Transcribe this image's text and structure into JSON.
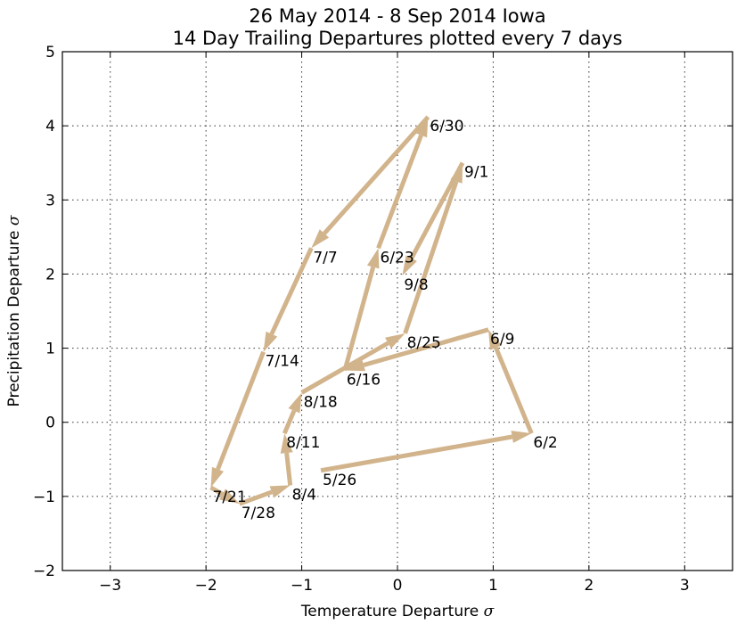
{
  "chart_data": {
    "type": "line",
    "title": "26 May 2014 - 8 Sep 2014 Iowa",
    "subtitle": "14 Day Trailing Departures plotted every 7 days",
    "xlabel": "Temperature Departure",
    "ylabel": "Precipitation Departure",
    "sigma": "σ",
    "xlim": [
      -3.5,
      3.5
    ],
    "ylim": [
      -2,
      5
    ],
    "xticks": [
      -3,
      -2,
      -1,
      0,
      1,
      2,
      3
    ],
    "yticks": [
      -2,
      -1,
      0,
      1,
      2,
      3,
      4,
      5
    ],
    "grid": true,
    "arrow_color": "#d2b48c",
    "points": [
      {
        "label": "5/26",
        "x": -0.8,
        "y": -0.65
      },
      {
        "label": "6/2",
        "x": 1.4,
        "y": -0.15
      },
      {
        "label": "6/9",
        "x": 0.95,
        "y": 1.25
      },
      {
        "label": "6/16",
        "x": -0.55,
        "y": 0.7
      },
      {
        "label": "6/23",
        "x": -0.2,
        "y": 2.35
      },
      {
        "label": "6/30",
        "x": 0.32,
        "y": 4.12
      },
      {
        "label": "7/7",
        "x": -0.9,
        "y": 2.35
      },
      {
        "label": "7/14",
        "x": -1.4,
        "y": 0.95
      },
      {
        "label": "7/21",
        "x": -1.95,
        "y": -0.88
      },
      {
        "label": "7/28",
        "x": -1.65,
        "y": -1.1
      },
      {
        "label": "8/4",
        "x": -1.12,
        "y": -0.85
      },
      {
        "label": "8/11",
        "x": -1.18,
        "y": -0.15
      },
      {
        "label": "8/18",
        "x": -1.0,
        "y": 0.4
      },
      {
        "label": "8/25",
        "x": 0.08,
        "y": 1.2
      },
      {
        "label": "9/1",
        "x": 0.68,
        "y": 3.5
      },
      {
        "label": "9/8",
        "x": 0.05,
        "y": 1.98
      }
    ]
  }
}
